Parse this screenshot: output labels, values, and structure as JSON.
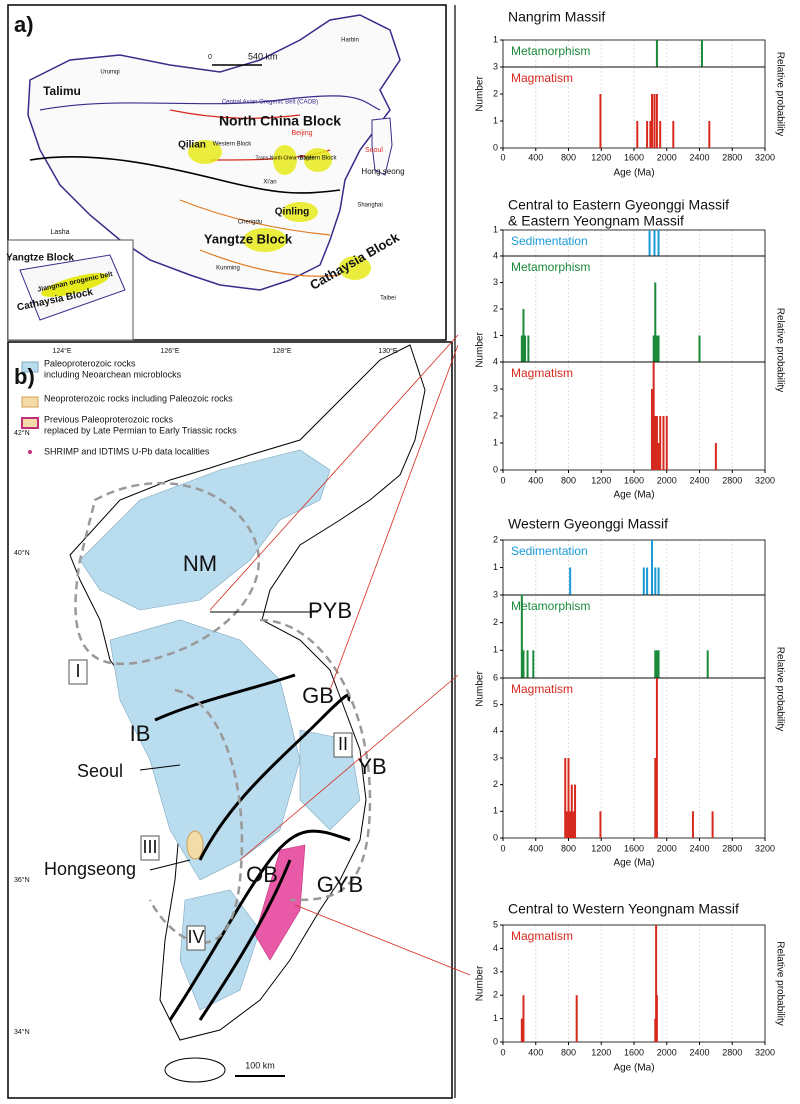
{
  "map_a": {
    "panel_label": "a)",
    "scale": [
      "0",
      "540 km"
    ],
    "labels": [
      "Talimu",
      "North China Block",
      "Qilian",
      "Qinling",
      "Yangtze Block",
      "Cathaysia Block",
      "Hong seong",
      "Seoul",
      "Beijing",
      "Lasha",
      "Western Block",
      "Eastern Block",
      "Trans-North China Orogen",
      "Central Asian Orogenic Belt (CAOB)",
      "Chengdu",
      "Kunming",
      "Shanghai",
      "Taibei",
      "Urumqi",
      "Harbin",
      "Xi'an"
    ],
    "inset_labels": [
      "Yangtze Block",
      "Jiangnan orogenic belt",
      "Cathaysia Block"
    ]
  },
  "map_b": {
    "panel_label": "b)",
    "longitudes": [
      "124°E",
      "126°E",
      "128°E",
      "130°E"
    ],
    "latitudes": [
      "42°N",
      "40°N",
      "36°N",
      "34°N"
    ],
    "legend": [
      [
        "Paleoproterozoic rocks",
        "including Neoarchean microblocks"
      ],
      [
        "Neoproterozoic rocks including Paleozoic rocks"
      ],
      [
        "Previous Paleoproterozoic rocks",
        "replaced by Late Permian to Early Triassic rocks"
      ],
      [
        "SHRIMP and IDTIMS U-Pb data localities"
      ]
    ],
    "labels": [
      "NM",
      "PYB",
      "I",
      "GB",
      "IB",
      "II",
      "Seoul",
      "YB",
      "III",
      "Hongseong",
      "OB",
      "GYB",
      "IV"
    ],
    "scale": "100 km"
  },
  "chart_data": [
    {
      "type": "bar",
      "title": [
        "Nangrim Massif"
      ],
      "xlabel": "Age (Ma)",
      "ylabel": "Number",
      "y2label": "Relative probability",
      "xlim": [
        0,
        3200
      ],
      "xticks": [
        0,
        400,
        800,
        1200,
        1600,
        2000,
        2400,
        2800,
        3200
      ],
      "subplots": [
        {
          "name": "Metamorphism",
          "color": "#1a8a3a",
          "ylim": [
            0,
            1
          ],
          "yticks": [
            1
          ],
          "x": [
            1880,
            2430
          ],
          "values": [
            1,
            1
          ]
        },
        {
          "name": "Magmatism",
          "color": "#d62a1e",
          "ylim": [
            0,
            3
          ],
          "yticks": [
            0,
            1,
            2,
            3
          ],
          "x": [
            1190,
            1640,
            1760,
            1800,
            1820,
            1850,
            1880,
            1920,
            2080,
            2520
          ],
          "values": [
            2,
            1,
            1,
            1,
            2,
            2,
            2,
            1,
            1,
            1
          ]
        }
      ]
    },
    {
      "type": "bar",
      "title": [
        "Central to Eastern Gyeonggi Massif",
        "& Eastern Yeongnam Massif"
      ],
      "xlabel": "Age (Ma)",
      "ylabel": "Number",
      "y2label": "Relative probability",
      "xlim": [
        0,
        3200
      ],
      "xticks": [
        0,
        400,
        800,
        1200,
        1600,
        2000,
        2400,
        2800,
        3200
      ],
      "subplots": [
        {
          "name": "Sedimentation",
          "color": "#1a9ad6",
          "ylim": [
            0,
            1
          ],
          "yticks": [
            1
          ],
          "x": [
            1790,
            1850,
            1900
          ],
          "values": [
            1,
            1,
            1
          ]
        },
        {
          "name": "Metamorphism",
          "color": "#1a8a3a",
          "ylim": [
            0,
            4
          ],
          "yticks": [
            1,
            2,
            3,
            4
          ],
          "x": [
            230,
            250,
            270,
            310,
            1840,
            1860,
            1880,
            1900,
            2400
          ],
          "values": [
            1,
            2,
            1,
            1,
            1,
            3,
            1,
            1,
            1
          ]
        },
        {
          "name": "Magmatism",
          "color": "#d62a1e",
          "ylim": [
            0,
            4
          ],
          "yticks": [
            0,
            1,
            2,
            3,
            4
          ],
          "x": [
            1820,
            1840,
            1860,
            1880,
            1900,
            1920,
            1960,
            2000,
            2600
          ],
          "values": [
            3,
            4,
            2,
            2,
            1,
            2,
            2,
            2,
            1
          ]
        }
      ]
    },
    {
      "type": "bar",
      "title": [
        "Western Gyeonggi Massif"
      ],
      "xlabel": "Age (Ma)",
      "ylabel": "Number",
      "y2label": "Relative probability",
      "xlim": [
        0,
        3200
      ],
      "xticks": [
        0,
        400,
        800,
        1200,
        1600,
        2000,
        2400,
        2800,
        3200
      ],
      "subplots": [
        {
          "name": "Sedimentation",
          "color": "#1a9ad6",
          "ylim": [
            0,
            2
          ],
          "yticks": [
            1,
            2
          ],
          "x": [
            820,
            1720,
            1760,
            1820,
            1860,
            1900
          ],
          "values": [
            1,
            1,
            1,
            2,
            1,
            1
          ]
        },
        {
          "name": "Metamorphism",
          "color": "#1a8a3a",
          "ylim": [
            0,
            3
          ],
          "yticks": [
            1,
            2,
            3
          ],
          "x": [
            230,
            250,
            300,
            370,
            1860,
            1880,
            1900,
            2500
          ],
          "values": [
            3,
            1,
            1,
            1,
            1,
            1,
            1,
            1
          ]
        },
        {
          "name": "Magmatism",
          "color": "#d62a1e",
          "ylim": [
            0,
            6
          ],
          "yticks": [
            0,
            1,
            2,
            3,
            4,
            5,
            6
          ],
          "x": [
            760,
            780,
            800,
            820,
            840,
            860,
            880,
            1190,
            1860,
            1880,
            2320,
            2560
          ],
          "values": [
            3,
            1,
            3,
            1,
            2,
            1,
            2,
            1,
            3,
            6,
            1,
            1
          ]
        }
      ]
    },
    {
      "type": "bar",
      "title": [
        "Central to Western Yeongnam Massif"
      ],
      "xlabel": "Age (Ma)",
      "ylabel": "Number",
      "y2label": "Relative probability",
      "xlim": [
        0,
        3200
      ],
      "xticks": [
        0,
        400,
        800,
        1200,
        1600,
        2000,
        2400,
        2800,
        3200
      ],
      "subplots": [
        {
          "name": "Magmatism",
          "color": "#d62a1e",
          "ylim": [
            0,
            5
          ],
          "yticks": [
            0,
            1,
            2,
            3,
            4,
            5
          ],
          "x": [
            230,
            250,
            900,
            1860,
            1870,
            1880
          ],
          "values": [
            1,
            2,
            2,
            1,
            5,
            2
          ]
        }
      ]
    }
  ]
}
